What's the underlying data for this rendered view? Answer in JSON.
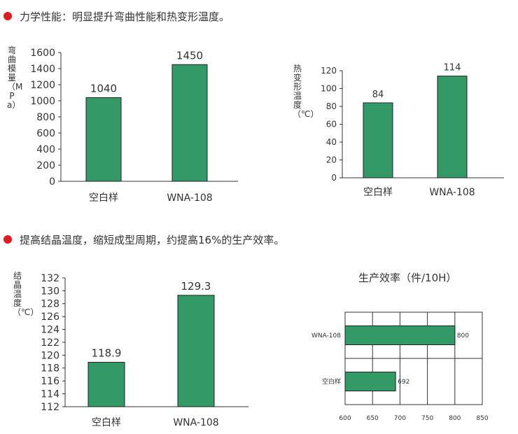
{
  "headings": {
    "mechanical": "力学性能：明显提升弯曲性能和热变形温度。",
    "crystallization": "提高结晶温度，缩短成型周期，约提高16%的生产效率。"
  },
  "chart_data": [
    {
      "id": "modulus",
      "type": "bar",
      "ylabel": "弯曲模量（MPa）",
      "categories": [
        "空白样",
        "WNA-108"
      ],
      "values": [
        1040,
        1450
      ],
      "value_labels": [
        "1040",
        "1450"
      ],
      "ylim": [
        0,
        1600
      ],
      "yticks": [
        0,
        200,
        400,
        600,
        800,
        1000,
        1200,
        1400,
        1600
      ],
      "bar_color": "#339966"
    },
    {
      "id": "hdt",
      "type": "bar",
      "ylabel": "热变形温度（℃）",
      "categories": [
        "空白样",
        "WNA-108"
      ],
      "values": [
        84,
        114
      ],
      "value_labels": [
        "84",
        "114"
      ],
      "ylim": [
        0,
        120
      ],
      "yticks": [
        0,
        20,
        40,
        60,
        80,
        100,
        120
      ],
      "bar_color": "#339966"
    },
    {
      "id": "crystal",
      "type": "bar",
      "ylabel": "结晶温度（℃）",
      "categories": [
        "空白样",
        "WNA-108"
      ],
      "values": [
        118.9,
        129.3
      ],
      "value_labels": [
        "118.9",
        "129.3"
      ],
      "ylim": [
        112,
        132
      ],
      "yticks": [
        112,
        114,
        116,
        118,
        120,
        122,
        124,
        126,
        128,
        130,
        132
      ],
      "bar_color": "#339966"
    },
    {
      "id": "efficiency",
      "type": "bar",
      "orientation": "horizontal",
      "title": "生产效率（件/10H）",
      "categories": [
        "空白样",
        "WNA-108"
      ],
      "values": [
        692,
        800
      ],
      "value_labels": [
        "692",
        "800"
      ],
      "xlim": [
        600,
        850
      ],
      "xticks": [
        600,
        650,
        700,
        750,
        800,
        850
      ],
      "grid": true,
      "bar_color": "#339966"
    }
  ]
}
